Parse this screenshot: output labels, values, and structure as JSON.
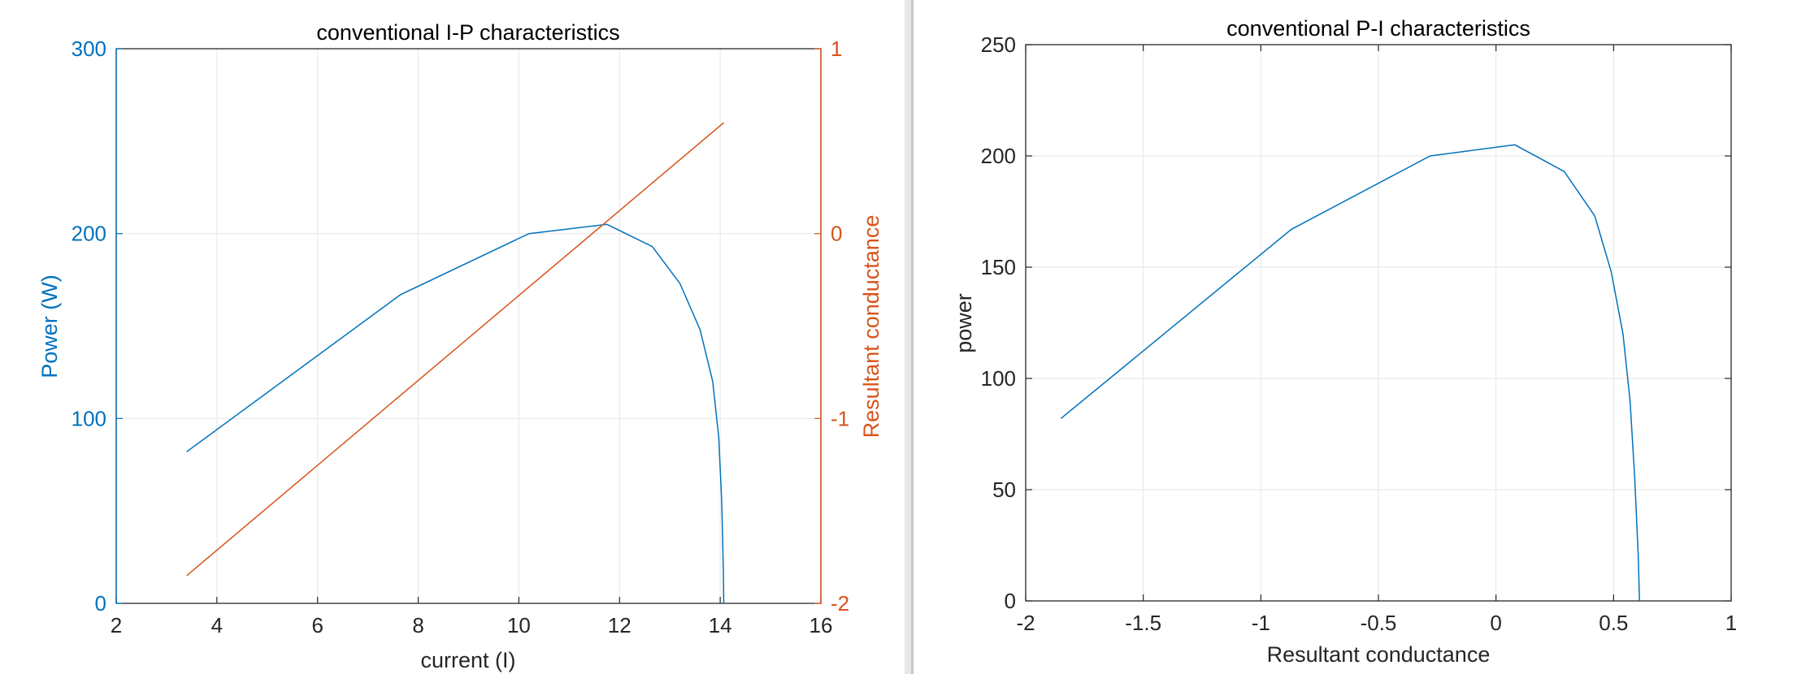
{
  "chart_data": [
    {
      "type": "line",
      "title": "conventional I-P characteristics",
      "xlabel": "current (I)",
      "ylabel_left": "Power (W)",
      "ylabel_right": "Resultant conductance",
      "xlim": [
        2,
        16
      ],
      "ylim_left": [
        0,
        300
      ],
      "ylim_right": [
        -2,
        1
      ],
      "xticks": [
        "2",
        "4",
        "6",
        "8",
        "10",
        "12",
        "14",
        "16"
      ],
      "yticks_left": [
        "0",
        "100",
        "200",
        "300"
      ],
      "yticks_right": [
        "-2",
        "-1",
        "0",
        "1"
      ],
      "grid": true,
      "colors": {
        "left": "#0072BD",
        "right": "#D95319"
      },
      "series": [
        {
          "axis": "left",
          "x": [
            3.4,
            7.65,
            10.2,
            11.75,
            12.65,
            13.2,
            13.6,
            13.85,
            13.97,
            14.03,
            14.06,
            14.07
          ],
          "values": [
            82,
            167,
            200,
            205,
            193,
            173,
            148,
            120,
            90,
            55,
            20,
            0
          ]
        },
        {
          "axis": "right",
          "x": [
            3.4,
            14.07
          ],
          "values": [
            -1.85,
            0.6
          ]
        }
      ]
    },
    {
      "type": "line",
      "title": "conventional P-I characteristics",
      "xlabel": "Resultant conductance",
      "ylabel": "power",
      "xlim": [
        -2,
        1
      ],
      "ylim": [
        0,
        250
      ],
      "xticks": [
        "-2",
        "-1.5",
        "-1",
        "-0.5",
        "0",
        "0.5",
        "1"
      ],
      "yticks": [
        "0",
        "50",
        "100",
        "150",
        "200",
        "250"
      ],
      "grid": true,
      "colors": {
        "line": "#0072BD"
      },
      "series": [
        {
          "x": [
            -1.85,
            -0.87,
            -0.28,
            0.08,
            0.29,
            0.42,
            0.49,
            0.54,
            0.57,
            0.59,
            0.605,
            0.61
          ],
          "values": [
            82,
            167,
            200,
            205,
            193,
            173,
            148,
            120,
            90,
            55,
            20,
            0
          ]
        }
      ]
    }
  ]
}
